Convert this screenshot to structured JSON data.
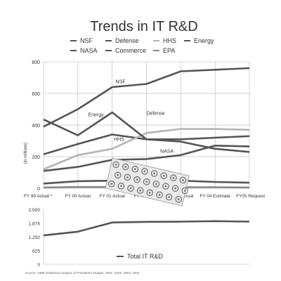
{
  "title": "Trends in IT R&D",
  "source_note": "Source: OMB Statistical Analysis of President's Budget, 2001, 2002, 2003, 2004",
  "colors": {
    "series_dark": "#555555",
    "series_mid": "#8a8a8a",
    "series_light": "#b4b4b4",
    "grid": "#c8c8c8",
    "text": "#333333"
  },
  "chart_data": [
    {
      "type": "line",
      "categories": [
        "FY 99 Actual *",
        "FY 00 Actual",
        "FY 01 Actual",
        "FY 02 Actual",
        "FY 03 Actual",
        "FY 04 Estimate",
        "FY05 Request"
      ],
      "ylabel": "(in millions)",
      "ylim": [
        0,
        800
      ],
      "yticks": [
        0,
        200,
        400,
        600,
        800
      ],
      "grid": true,
      "legend": [
        {
          "name": "NSF",
          "column": 0
        },
        {
          "name": "Defense",
          "column": 1
        },
        {
          "name": "HHS",
          "column": 2
        },
        {
          "name": "Energy",
          "column": 3
        },
        {
          "name": "NASA",
          "column": 0
        },
        {
          "name": "Commerce",
          "column": 1
        },
        {
          "name": "EPA",
          "column": 2
        }
      ],
      "series": [
        {
          "name": "NSF",
          "values": [
            390,
            500,
            640,
            660,
            740,
            750,
            760
          ],
          "color": "#555555"
        },
        {
          "name": "Defense",
          "values": [
            215,
            280,
            340,
            310,
            310,
            320,
            330
          ],
          "color": "#555555"
        },
        {
          "name": "HHS",
          "values": [
            120,
            210,
            250,
            350,
            375,
            375,
            370
          ],
          "color": "#b4b4b4"
        },
        {
          "name": "Energy",
          "values": [
            435,
            335,
            480,
            310,
            295,
            250,
            230
          ],
          "color": "#555555"
        },
        {
          "name": "NASA",
          "values": [
            110,
            135,
            180,
            185,
            210,
            270,
            265
          ],
          "color": "#555555"
        },
        {
          "name": "Commerce",
          "values": [
            30,
            45,
            48,
            50,
            48,
            40,
            35
          ],
          "color": "#555555"
        },
        {
          "name": "EPA",
          "values": [
            5,
            8,
            8,
            6,
            6,
            6,
            5
          ],
          "color": "#8a8a8a"
        }
      ],
      "annotations": [
        {
          "text": "NSF",
          "x": 2.1,
          "y": 665
        },
        {
          "text": "Defense",
          "x": 3.0,
          "y": 465
        },
        {
          "text": "Energy",
          "x": 1.3,
          "y": 455
        },
        {
          "text": "HHS",
          "x": 2.05,
          "y": 300
        },
        {
          "text": "NASA",
          "x": 3.4,
          "y": 225
        }
      ]
    },
    {
      "type": "line",
      "categories": [
        "FY 99 Actual *",
        "FY 00 Actual",
        "FY 01 Actual",
        "FY 02 Actual",
        "FY 03 Actual",
        "FY 04 Estimate",
        "FY05 Request"
      ],
      "ylim": [
        0,
        2500
      ],
      "yticks": [
        "0",
        "625",
        "1,250",
        "1,875",
        "2,500"
      ],
      "grid": false,
      "legend_placement": "bottom",
      "series": [
        {
          "name": "Total IT R&D",
          "values": [
            1310,
            1480,
            1900,
            1930,
            1940,
            1960,
            1940
          ],
          "color": "#555555"
        }
      ]
    }
  ]
}
